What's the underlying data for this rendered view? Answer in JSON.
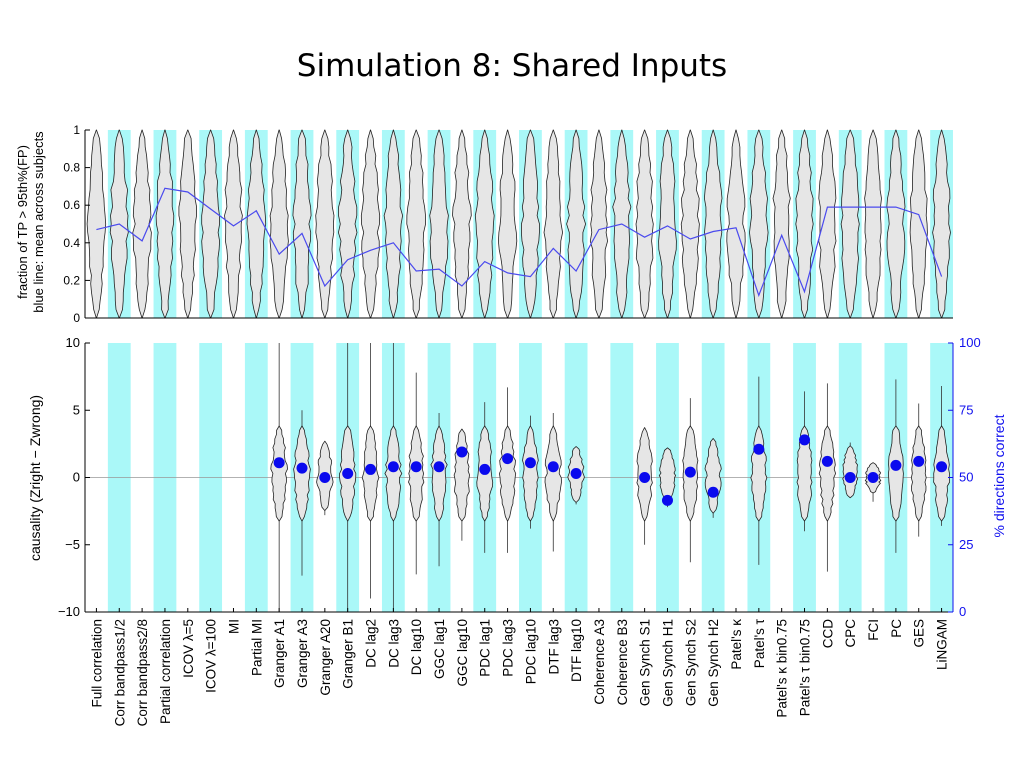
{
  "slide": {
    "title": "Simulation 8: Shared Inputs"
  },
  "chart_data": [
    {
      "type": "line",
      "panel": "top",
      "ylabel": "fraction of TP > 95th%(FP)",
      "ylabel2": "blue line: mean across subjects",
      "ylim": [
        0,
        1
      ],
      "yticks": [
        "0",
        "0.2",
        "0.4",
        "0.6",
        "0.8",
        "1"
      ],
      "x": [
        "Full correlation",
        "Corr bandpass1/2",
        "Corr bandpass2/8",
        "Partial correlation",
        "ICOV λ=5",
        "ICOV λ=100",
        "MI",
        "Partial MI",
        "Granger A1",
        "Granger A3",
        "Granger A20",
        "Granger B1",
        "DC lag2",
        "DC lag3",
        "DC lag10",
        "GGC lag1",
        "GGC lag10",
        "PDC lag1",
        "PDC lag3",
        "PDC lag10",
        "DTF lag3",
        "DTF lag10",
        "Coherence A3",
        "Coherence B3",
        "Gen Synch S1",
        "Gen Synch H1",
        "Gen Synch S2",
        "Gen Synch H2",
        "Patel's κ",
        "Patel's τ",
        "Patel's κ bin0.75",
        "Patel's τ bin0.75",
        "CCD",
        "CPC",
        "FCI",
        "PC",
        "GES",
        "LiNGAM"
      ],
      "y": [
        0.47,
        0.5,
        0.41,
        0.69,
        0.67,
        0.58,
        0.49,
        0.57,
        0.34,
        0.45,
        0.17,
        0.31,
        0.36,
        0.4,
        0.25,
        0.26,
        0.17,
        0.3,
        0.24,
        0.22,
        0.37,
        0.25,
        0.47,
        0.5,
        0.43,
        0.49,
        0.42,
        0.46,
        0.48,
        0.12,
        0.44,
        0.14,
        0.59,
        0.59,
        0.59,
        0.59,
        0.55,
        0.22
      ],
      "grid": false
    },
    {
      "type": "scatter",
      "panel": "bottom",
      "ylabel": "causality  (Zright − Zwrong)",
      "ylabel_right": "% directions correct",
      "ylim": [
        -10,
        10
      ],
      "ylim_right": [
        0,
        100
      ],
      "yticks": [
        "−10",
        "−5",
        "0",
        "5",
        "10"
      ],
      "yticks_right": [
        "0",
        "25",
        "50",
        "75",
        "100"
      ],
      "right_axis_color": "#1010ee",
      "x": [
        "Full correlation",
        "Corr bandpass1/2",
        "Corr bandpass2/8",
        "Partial correlation",
        "ICOV λ=5",
        "ICOV λ=100",
        "MI",
        "Partial MI",
        "Granger A1",
        "Granger A3",
        "Granger A20",
        "Granger B1",
        "DC lag2",
        "DC lag3",
        "DC lag10",
        "GGC lag1",
        "GGC lag10",
        "PDC lag1",
        "PDC lag3",
        "PDC lag10",
        "DTF lag3",
        "DTF lag10",
        "Coherence A3",
        "Coherence B3",
        "Gen Synch S1",
        "Gen Synch H1",
        "Gen Synch S2",
        "Gen Synch H2",
        "Patel's κ",
        "Patel's τ",
        "Patel's κ bin0.75",
        "Patel's τ bin0.75",
        "CCD",
        "CPC",
        "FCI",
        "PC",
        "GES",
        "LiNGAM"
      ],
      "pct_correct": [
        null,
        null,
        null,
        null,
        null,
        null,
        null,
        null,
        55.5,
        53.5,
        50,
        51.5,
        53,
        54,
        54,
        54,
        59.5,
        53,
        57,
        55.5,
        54,
        51.5,
        null,
        null,
        50,
        41.5,
        52,
        44.5,
        null,
        60.5,
        null,
        64,
        56,
        50,
        50,
        54.5,
        56,
        54
      ],
      "violin_extent": [
        null,
        null,
        null,
        null,
        null,
        null,
        null,
        null,
        [
          -10,
          10
        ],
        [
          -7.3,
          5
        ],
        [
          -2.8,
          2.7
        ],
        [
          -10,
          10
        ],
        [
          -9,
          10
        ],
        [
          -10,
          10
        ],
        [
          -7.2,
          7.8
        ],
        [
          -6.6,
          4.8
        ],
        [
          -4.7,
          3.6
        ],
        [
          -5.6,
          5.6
        ],
        [
          -5.6,
          6.7
        ],
        [
          -3.8,
          4.6
        ],
        [
          -5.5,
          4.8
        ],
        [
          -2,
          2.3
        ],
        null,
        null,
        [
          -5,
          3.7
        ],
        [
          -2.2,
          2.2
        ],
        [
          -6.3,
          5.9
        ],
        [
          -3,
          2.9
        ],
        null,
        [
          -6.5,
          7.5
        ],
        null,
        [
          -4,
          6.4
        ],
        [
          -7,
          7
        ],
        [
          -1.5,
          2.6
        ],
        [
          -1.8,
          1.1
        ],
        [
          -5.6,
          7.3
        ],
        [
          -4.4,
          5.5
        ],
        [
          -3.6,
          6.8
        ]
      ],
      "legend": null
    }
  ],
  "colors": {
    "band": "#aaf8f8",
    "violin_fill": "#e6e6e6",
    "mean_line": "#4a4aee",
    "dot": "#0a0aee",
    "axis_blue": "#1010ee"
  }
}
